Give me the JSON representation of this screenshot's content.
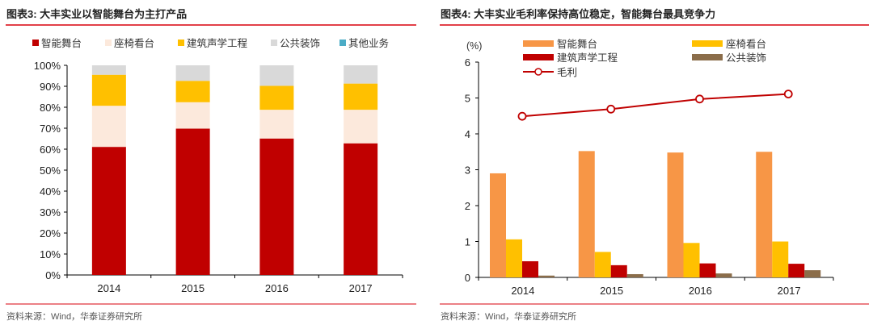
{
  "left": {
    "title": "图表3:   大丰实业以智能舞台为主打产品",
    "source": "资料来源：Wind，华泰证券研究所"
  },
  "right": {
    "title": "图表4:   大丰实业毛利率保持高位稳定，智能舞台最具竞争力",
    "source": "资料来源：Wind，华泰证券研究所"
  },
  "chart_data": [
    {
      "type": "bar",
      "stacked": true,
      "title": "图表3:   大丰实业以智能舞台为主打产品",
      "categories": [
        "2014",
        "2015",
        "2016",
        "2017"
      ],
      "ylim": [
        0,
        100
      ],
      "yticks": [
        "0%",
        "10%",
        "20%",
        "30%",
        "40%",
        "50%",
        "60%",
        "70%",
        "80%",
        "90%",
        "100%"
      ],
      "legend_position": "top",
      "grid": false,
      "series": [
        {
          "name": "智能舞台",
          "color": "#C00000",
          "values": [
            61.1,
            69.8,
            65.1,
            62.8
          ]
        },
        {
          "name": "座椅看台",
          "color": "#FCE9DC",
          "values": [
            19.6,
            12.6,
            13.7,
            16.0
          ]
        },
        {
          "name": "建筑声学工程",
          "color": "#FFC000",
          "values": [
            14.8,
            10.2,
            11.4,
            12.5
          ]
        },
        {
          "name": "公共装饰",
          "color": "#D9D9D9",
          "values": [
            4.5,
            7.4,
            9.8,
            8.7
          ]
        },
        {
          "name": "其他业务",
          "color": "#4BACC6",
          "values": [
            0,
            0,
            0,
            0
          ]
        }
      ]
    },
    {
      "type": "bar",
      "title": "图表4:   大丰实业毛利率保持高位稳定，智能舞台最具竞争力",
      "unit": "(%)",
      "categories": [
        "2014",
        "2015",
        "2016",
        "2017"
      ],
      "ylim": [
        0,
        6
      ],
      "yticks": [
        "0",
        "1",
        "2",
        "3",
        "4",
        "5",
        "6"
      ],
      "legend_position": "top",
      "grid": false,
      "series": [
        {
          "name": "智能舞台",
          "type": "bar",
          "color": "#F79646",
          "values": [
            2.9,
            3.52,
            3.48,
            3.5
          ]
        },
        {
          "name": "座椅看台",
          "type": "bar",
          "color": "#FFC000",
          "values": [
            1.06,
            0.71,
            0.96,
            1.0
          ]
        },
        {
          "name": "建筑声学工程",
          "type": "bar",
          "color": "#C00000",
          "values": [
            0.45,
            0.34,
            0.39,
            0.38
          ]
        },
        {
          "name": "公共装饰",
          "type": "bar",
          "color": "#8B6D4A",
          "values": [
            0.05,
            0.09,
            0.11,
            0.2
          ]
        },
        {
          "name": "毛利",
          "type": "line",
          "color": "#C00000",
          "values": [
            4.49,
            4.69,
            4.97,
            5.11
          ]
        }
      ]
    }
  ]
}
